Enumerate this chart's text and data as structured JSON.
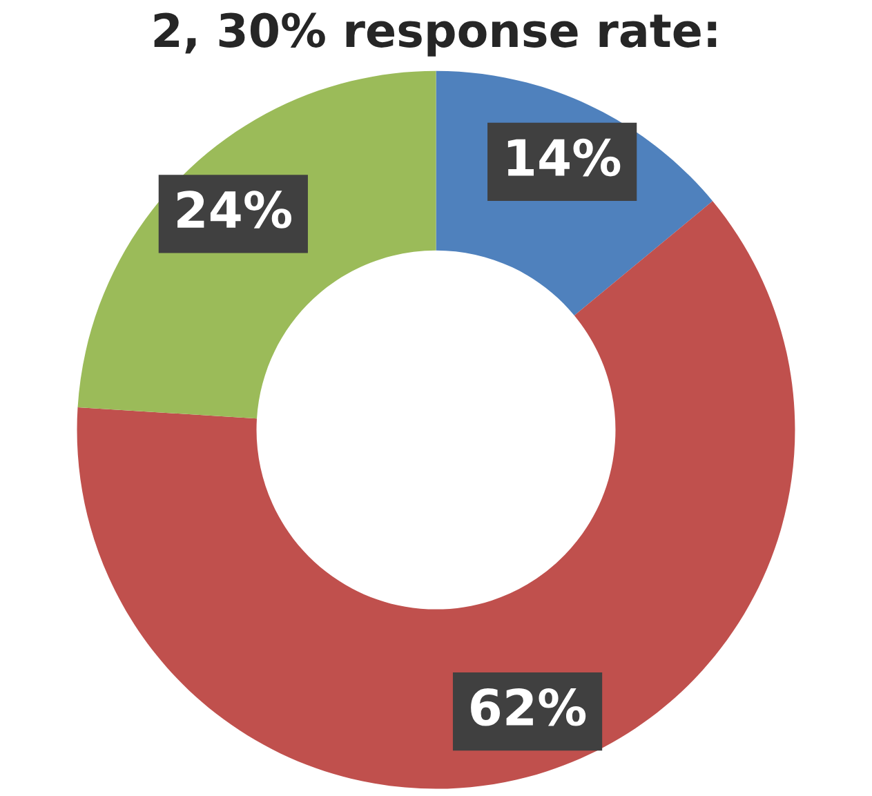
{
  "chart_data": {
    "type": "donut",
    "title": "2, 30% response rate:",
    "categories": [
      null,
      null,
      null
    ],
    "values": [
      14,
      62,
      24
    ],
    "colors": [
      "#4f81bd",
      "#c0504d",
      "#9bbb59"
    ],
    "value_labels": [
      "14%",
      "62%",
      "24%"
    ]
  }
}
